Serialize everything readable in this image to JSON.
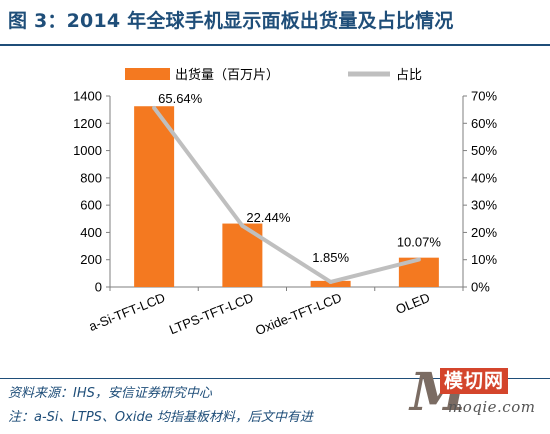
{
  "header": {
    "title": "图 3：2014 年全球手机显示面板出货量及占比情况"
  },
  "chart_data": {
    "type": "bar",
    "categories": [
      "a-Si-TFT-LCD",
      "LTPS-TFT-LCD",
      "Oxide-TFT-LCD",
      "OLED"
    ],
    "series": [
      {
        "name": "出货量（百万片）",
        "kind": "bar",
        "axis": "left",
        "color": "#F47920",
        "values": [
          1325,
          465,
          45,
          215
        ]
      },
      {
        "name": "占比",
        "kind": "line",
        "axis": "right",
        "color": "#BFBFBF",
        "values": [
          65.64,
          22.44,
          1.85,
          10.07
        ],
        "labels": [
          "65.64%",
          "22.44%",
          "1.85%",
          "10.07%"
        ]
      }
    ],
    "y_left": {
      "range": [
        0,
        1400
      ],
      "ticks": [
        "0",
        "200",
        "400",
        "600",
        "800",
        "1000",
        "1200",
        "1400"
      ]
    },
    "y_right": {
      "range": [
        0,
        70
      ],
      "ticks": [
        "0%",
        "10%",
        "20%",
        "30%",
        "40%",
        "50%",
        "60%",
        "70%"
      ]
    },
    "grid": false,
    "legend": "top-center"
  },
  "footer": {
    "source": "资料来源：IHS，安信证券研究中心",
    "note": "注：a-Si、LTPS、Oxide 均指基板材料，后文中有进"
  },
  "watermark": {
    "logo_letter": "M",
    "name": "模切网",
    "url": "moqie.com"
  }
}
